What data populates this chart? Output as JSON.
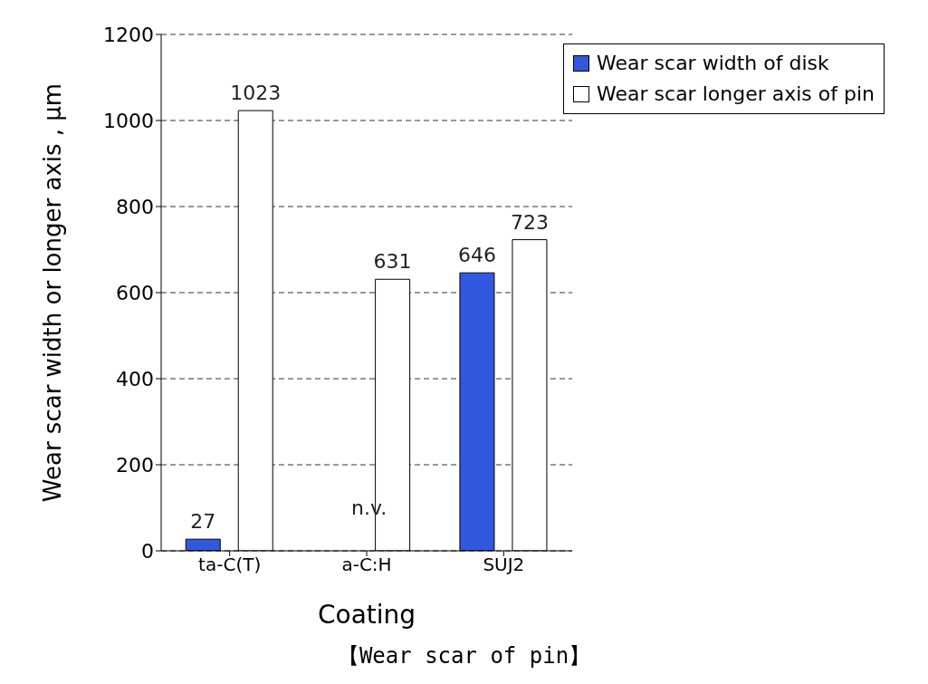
{
  "chart_data": {
    "type": "bar",
    "categories": [
      "ta-C(T)",
      "a-C:H",
      "SUJ2"
    ],
    "series": [
      {
        "name": "Wear scar width of disk",
        "color": "#3358e0",
        "values": [
          27,
          null,
          646
        ],
        "value_labels": [
          "27",
          null,
          "646"
        ]
      },
      {
        "name": "Wear scar longer axis of pin",
        "color": "#ffffff",
        "values": [
          1023,
          631,
          723
        ],
        "value_labels": [
          "1023",
          "631",
          "723"
        ]
      }
    ],
    "xlabel": "Coating",
    "ylabel": "Wear scar width or longer axis , μm",
    "ylim": [
      0,
      1200
    ],
    "yticks": [
      0,
      200,
      400,
      600,
      800,
      1000,
      1200
    ],
    "grid": "y",
    "legend": "top right",
    "annotations": [
      "n.v.",
      "【Wear scar of pin】"
    ]
  }
}
